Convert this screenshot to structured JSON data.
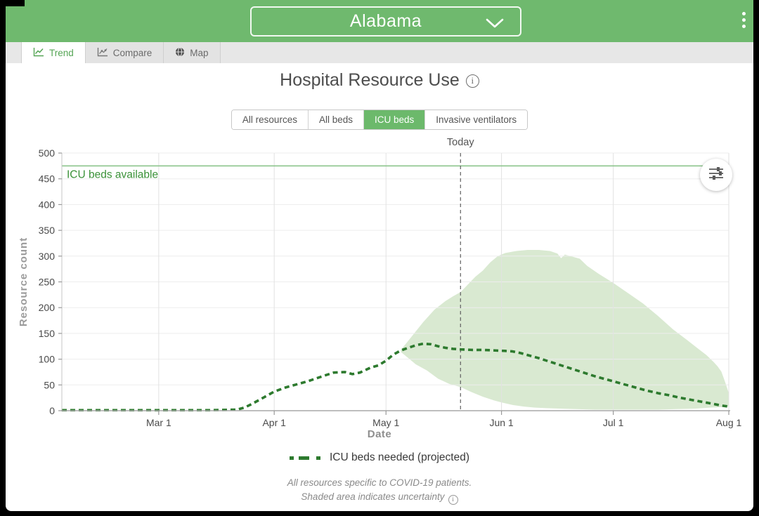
{
  "header": {
    "region_selected": "Alabama"
  },
  "tabs": [
    {
      "label": "Trend",
      "active": true
    },
    {
      "label": "Compare",
      "active": false
    },
    {
      "label": "Map",
      "active": false
    }
  ],
  "main": {
    "title": "Hospital Resource Use",
    "resource_toggle": {
      "options": [
        "All resources",
        "All beds",
        "ICU beds",
        "Invasive ventilators"
      ],
      "selected": "ICU beds"
    },
    "legend": {
      "label": "ICU beds needed (projected)"
    },
    "notes": {
      "line1": "All resources specific to COVID-19 patients.",
      "line2": "Shaded area indicates uncertainty"
    }
  },
  "chart_data": {
    "type": "line",
    "title": "Hospital Resource Use",
    "xlabel": "Date",
    "ylabel": "Resource count",
    "ylim": [
      0,
      500
    ],
    "y_ticks": [
      0,
      50,
      100,
      150,
      200,
      250,
      300,
      350,
      400,
      450,
      500
    ],
    "x_range_days": [
      0,
      179
    ],
    "x_ticks": [
      {
        "day": 26,
        "label": "Mar 1"
      },
      {
        "day": 57,
        "label": "Apr 1"
      },
      {
        "day": 87,
        "label": "May 1"
      },
      {
        "day": 118,
        "label": "Jun 1"
      },
      {
        "day": 148,
        "label": "Jul 1"
      },
      {
        "day": 179,
        "label": "Aug 1"
      }
    ],
    "today": {
      "day": 107,
      "label": "Today"
    },
    "reference_line": {
      "label": "ICU beds available",
      "value": 475
    },
    "series": [
      {
        "name": "ICU beds needed (projected)",
        "style": "dashed",
        "points": [
          [
            0,
            1
          ],
          [
            8,
            1
          ],
          [
            16,
            1
          ],
          [
            24,
            1
          ],
          [
            32,
            1
          ],
          [
            40,
            1
          ],
          [
            47,
            2
          ],
          [
            49,
            6
          ],
          [
            51,
            13
          ],
          [
            54,
            25
          ],
          [
            57,
            37
          ],
          [
            60,
            45
          ],
          [
            63,
            51
          ],
          [
            66,
            57
          ],
          [
            70,
            67
          ],
          [
            73,
            74
          ],
          [
            76,
            75
          ],
          [
            78,
            71
          ],
          [
            80,
            74
          ],
          [
            83,
            84
          ],
          [
            85,
            88
          ],
          [
            87,
            97
          ],
          [
            89,
            109
          ],
          [
            91,
            117
          ],
          [
            93,
            122
          ],
          [
            95,
            127
          ],
          [
            97,
            130
          ],
          [
            99,
            129
          ],
          [
            101,
            125
          ],
          [
            103,
            122
          ],
          [
            105,
            120
          ],
          [
            107,
            119
          ],
          [
            110,
            118
          ],
          [
            113,
            118
          ],
          [
            116,
            117
          ],
          [
            119,
            116
          ],
          [
            121,
            115
          ],
          [
            123,
            112
          ],
          [
            125,
            108
          ],
          [
            128,
            102
          ],
          [
            131,
            95
          ],
          [
            134,
            88
          ],
          [
            137,
            81
          ],
          [
            140,
            74
          ],
          [
            143,
            67
          ],
          [
            146,
            61
          ],
          [
            148,
            57
          ],
          [
            151,
            51
          ],
          [
            154,
            45
          ],
          [
            157,
            39
          ],
          [
            160,
            34
          ],
          [
            163,
            30
          ],
          [
            166,
            25
          ],
          [
            169,
            21
          ],
          [
            172,
            17
          ],
          [
            175,
            13
          ],
          [
            177,
            10
          ],
          [
            179,
            8
          ]
        ]
      }
    ],
    "uncertainty_band": {
      "upper": [
        [
          91,
          118
        ],
        [
          94,
          145
        ],
        [
          97,
          172
        ],
        [
          100,
          196
        ],
        [
          103,
          213
        ],
        [
          105,
          222
        ],
        [
          107,
          230
        ],
        [
          109,
          245
        ],
        [
          111,
          260
        ],
        [
          113,
          272
        ],
        [
          115,
          288
        ],
        [
          117,
          300
        ],
        [
          119,
          306
        ],
        [
          122,
          310
        ],
        [
          125,
          312
        ],
        [
          128,
          312
        ],
        [
          131,
          310
        ],
        [
          133,
          305
        ],
        [
          134,
          296
        ],
        [
          135,
          303
        ],
        [
          137,
          299
        ],
        [
          139,
          295
        ],
        [
          141,
          281
        ],
        [
          144,
          266
        ],
        [
          148,
          248
        ],
        [
          152,
          228
        ],
        [
          156,
          208
        ],
        [
          160,
          184
        ],
        [
          164,
          158
        ],
        [
          168,
          136
        ],
        [
          171,
          119
        ],
        [
          173,
          108
        ],
        [
          175,
          94
        ],
        [
          176,
          86
        ],
        [
          177,
          76
        ],
        [
          178,
          56
        ],
        [
          179,
          34
        ]
      ],
      "lower": [
        [
          91,
          114
        ],
        [
          93,
          102
        ],
        [
          95,
          90
        ],
        [
          98,
          78
        ],
        [
          101,
          62
        ],
        [
          104,
          52
        ],
        [
          107,
          46
        ],
        [
          110,
          36
        ],
        [
          113,
          27
        ],
        [
          116,
          20
        ],
        [
          118,
          16
        ],
        [
          121,
          11
        ],
        [
          124,
          8
        ],
        [
          127,
          6
        ],
        [
          130,
          5
        ],
        [
          134,
          4
        ],
        [
          138,
          3
        ],
        [
          143,
          2
        ],
        [
          148,
          2
        ],
        [
          154,
          2
        ],
        [
          160,
          2
        ],
        [
          165,
          3
        ],
        [
          170,
          4
        ],
        [
          174,
          6
        ],
        [
          177,
          7
        ],
        [
          179,
          8
        ]
      ]
    },
    "colors": {
      "accent": "#6fb96e",
      "line": "#2d7a2e",
      "band": "#d9e9d1",
      "reference": "#8cc48c",
      "reference_label": "#3a9138"
    },
    "grid": true,
    "legend_position": "bottom"
  }
}
